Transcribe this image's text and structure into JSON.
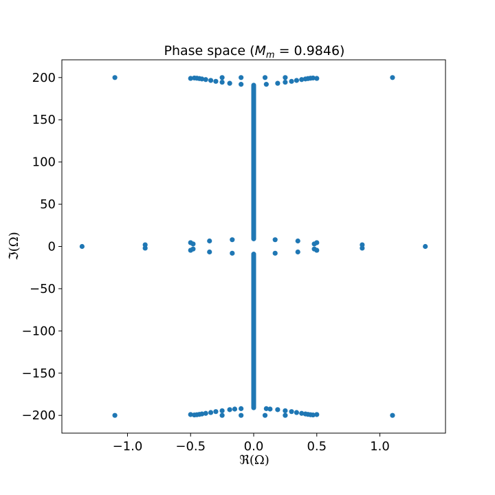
{
  "chart_data": {
    "type": "scatter",
    "title_prefix": "Phase space (",
    "title_math_var": "M",
    "title_math_sub": "m",
    "title_suffix": " = 0.9846)",
    "xlabel": "ℜ(Ω)",
    "ylabel": "ℑ(Ω)",
    "xlim": [
      -1.52,
      1.52
    ],
    "ylim": [
      -221,
      221
    ],
    "xticks": [
      -1.0,
      -0.5,
      0.0,
      0.5,
      1.0
    ],
    "xtick_labels": [
      "−1.0",
      "−0.5",
      "0.0",
      "0.5",
      "1.0"
    ],
    "yticks": [
      -200,
      -150,
      -100,
      -50,
      0,
      50,
      100,
      150,
      200
    ],
    "ytick_labels": [
      "−200",
      "−150",
      "−100",
      "−50",
      "0",
      "50",
      "100",
      "150",
      "200"
    ],
    "grid": false,
    "marker_color": "#1f77b4",
    "series": [
      {
        "points": [
          [
            -1.1,
            200
          ],
          [
            1.1,
            200
          ],
          [
            -1.1,
            -200
          ],
          [
            1.1,
            -200
          ],
          [
            -1.36,
            0
          ],
          [
            1.36,
            0
          ],
          [
            -0.86,
            2
          ],
          [
            -0.86,
            -2
          ],
          [
            0.86,
            2
          ],
          [
            0.86,
            -2
          ],
          [
            -0.5,
            4.5
          ],
          [
            -0.5,
            -4.5
          ],
          [
            0.5,
            4.5
          ],
          [
            0.5,
            -4.5
          ],
          [
            -0.48,
            3
          ],
          [
            -0.48,
            -3
          ],
          [
            0.48,
            3
          ],
          [
            0.48,
            -3
          ],
          [
            -0.35,
            6.5
          ],
          [
            -0.35,
            -6.5
          ],
          [
            0.35,
            6.5
          ],
          [
            0.35,
            -6.5
          ],
          [
            -0.17,
            8
          ],
          [
            -0.17,
            -8
          ],
          [
            0.17,
            8
          ],
          [
            0.17,
            -8
          ],
          [
            -0.47,
            199.5
          ],
          [
            -0.45,
            199.2
          ],
          [
            -0.43,
            198.8
          ],
          [
            -0.41,
            198.3
          ],
          [
            -0.38,
            197.6
          ],
          [
            -0.34,
            196.6
          ],
          [
            -0.3,
            195.5
          ],
          [
            -0.25,
            194.5
          ],
          [
            -0.19,
            193.2
          ],
          [
            -0.1,
            192
          ],
          [
            0.47,
            199.5
          ],
          [
            0.45,
            199.2
          ],
          [
            0.43,
            198.8
          ],
          [
            0.41,
            198.3
          ],
          [
            0.38,
            197.6
          ],
          [
            0.34,
            196.6
          ],
          [
            0.3,
            195.5
          ],
          [
            0.25,
            194.5
          ],
          [
            0.19,
            193.2
          ],
          [
            0.1,
            192
          ],
          [
            -0.47,
            -199.5
          ],
          [
            -0.45,
            -199.2
          ],
          [
            -0.43,
            -198.8
          ],
          [
            -0.41,
            -198.3
          ],
          [
            -0.38,
            -197.6
          ],
          [
            -0.34,
            -196.6
          ],
          [
            -0.3,
            -195.5
          ],
          [
            -0.25,
            -194.5
          ],
          [
            -0.19,
            -193.2
          ],
          [
            -0.1,
            -192
          ],
          [
            0.47,
            -199.5
          ],
          [
            0.45,
            -199.2
          ],
          [
            0.43,
            -198.8
          ],
          [
            0.41,
            -198.3
          ],
          [
            0.38,
            -197.6
          ],
          [
            0.34,
            -196.6
          ],
          [
            0.3,
            -195.5
          ],
          [
            0.25,
            -194.5
          ],
          [
            0.19,
            -193.2
          ],
          [
            0.1,
            -192
          ],
          [
            -0.25,
            200
          ],
          [
            0.25,
            200
          ],
          [
            -0.1,
            200
          ],
          [
            0.09,
            200
          ],
          [
            -0.5,
            199
          ],
          [
            0.5,
            199
          ],
          [
            -0.25,
            -200
          ],
          [
            0.25,
            -200
          ],
          [
            -0.1,
            -200
          ],
          [
            0.09,
            -200
          ],
          [
            -0.5,
            -199
          ],
          [
            0.5,
            -199
          ],
          [
            -0.15,
            -192.5
          ],
          [
            0.13,
            -192.5
          ]
        ]
      },
      {
        "vertical_lines": [
          {
            "x": 0.0,
            "y_from": 9,
            "y_to": 191
          },
          {
            "x": 0.0,
            "y_from": -191,
            "y_to": -9
          }
        ]
      }
    ]
  }
}
